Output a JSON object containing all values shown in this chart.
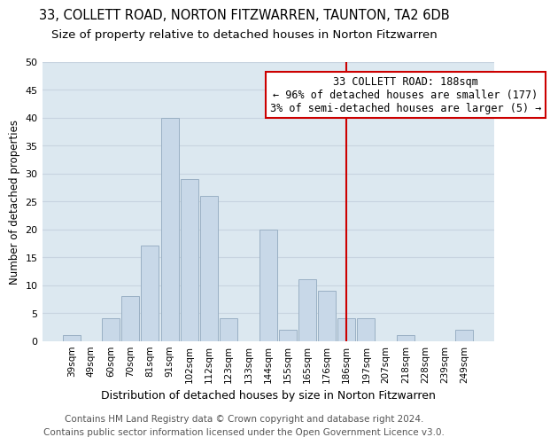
{
  "title": "33, COLLETT ROAD, NORTON FITZWARREN, TAUNTON, TA2 6DB",
  "subtitle": "Size of property relative to detached houses in Norton Fitzwarren",
  "xlabel": "Distribution of detached houses by size in Norton Fitzwarren",
  "ylabel": "Number of detached properties",
  "bar_labels": [
    "39sqm",
    "49sqm",
    "60sqm",
    "70sqm",
    "81sqm",
    "91sqm",
    "102sqm",
    "112sqm",
    "123sqm",
    "133sqm",
    "144sqm",
    "155sqm",
    "165sqm",
    "176sqm",
    "186sqm",
    "197sqm",
    "207sqm",
    "218sqm",
    "228sqm",
    "239sqm",
    "249sqm"
  ],
  "bar_values": [
    1,
    0,
    4,
    8,
    17,
    40,
    29,
    26,
    4,
    0,
    20,
    2,
    11,
    9,
    4,
    4,
    0,
    1,
    0,
    0,
    2
  ],
  "bar_color": "#c8d8e8",
  "bar_edgecolor": "#9ab0c4",
  "grid_color": "#c8d4e0",
  "background_color": "#dce8f0",
  "ylim": [
    0,
    50
  ],
  "yticks": [
    0,
    5,
    10,
    15,
    20,
    25,
    30,
    35,
    40,
    45,
    50
  ],
  "vline_x_idx": 14,
  "vline_color": "#cc0000",
  "annotation_line1": "33 COLLETT ROAD: 188sqm",
  "annotation_line2": "← 96% of detached houses are smaller (177)",
  "annotation_line3": "3% of semi-detached houses are larger (5) →",
  "annotation_box_edgecolor": "#cc0000",
  "footer_line1": "Contains HM Land Registry data © Crown copyright and database right 2024.",
  "footer_line2": "Contains public sector information licensed under the Open Government Licence v3.0.",
  "title_fontsize": 10.5,
  "subtitle_fontsize": 9.5,
  "annotation_fontsize": 8.5,
  "footer_fontsize": 7.5,
  "xlabel_fontsize": 9,
  "ylabel_fontsize": 8.5
}
